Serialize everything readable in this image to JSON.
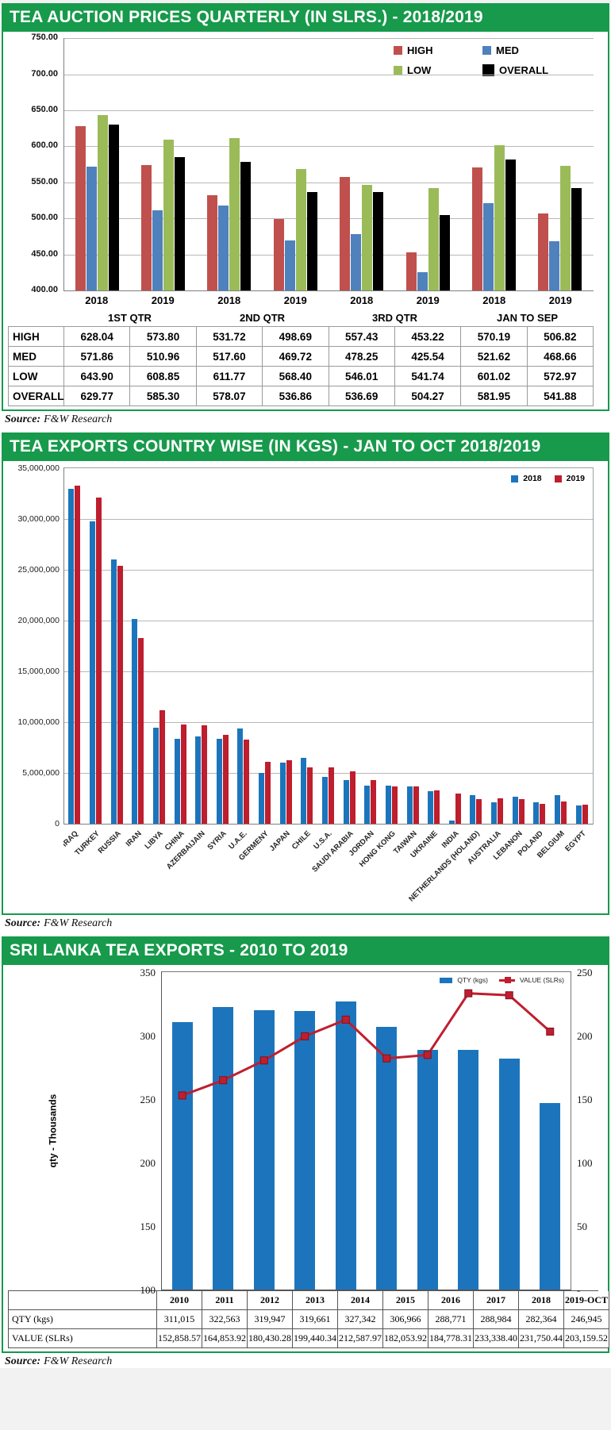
{
  "source_note": {
    "label": "Source:",
    "value": "F&W Research"
  },
  "panels": {
    "p1": {
      "title": "TEA AUCTION PRICES QUARTERLY (IN SLRS.) - 2018/2019"
    },
    "p2": {
      "title": "TEA EXPORTS COUNTRY WISE (IN KGS) - JAN TO OCT 2018/2019"
    },
    "p3": {
      "title": "SRI LANKA TEA EXPORTS - 2010 TO 2019"
    }
  },
  "chart_data": [
    {
      "type": "bar",
      "title": "TEA AUCTION PRICES QUARTERLY (IN SLRS.) - 2018/2019",
      "categories": [
        "2018",
        "2019",
        "2018",
        "2019",
        "2018",
        "2019",
        "2018",
        "2019"
      ],
      "category_groups": [
        "1ST QTR",
        "2ND QTR",
        "3RD QTR",
        "JAN TO SEP"
      ],
      "series": [
        {
          "name": "HIGH",
          "color": "#C0504D",
          "values": [
            "628.04",
            "573.80",
            "531.72",
            "498.69",
            "557.43",
            "453.22",
            "570.19",
            "506.82"
          ]
        },
        {
          "name": "MED",
          "color": "#4F81BD",
          "values": [
            "571.86",
            "510.96",
            "517.60",
            "469.72",
            "478.25",
            "425.54",
            "521.62",
            "468.66"
          ]
        },
        {
          "name": "LOW",
          "color": "#9BBB59",
          "values": [
            "643.90",
            "608.85",
            "611.77",
            "568.40",
            "546.01",
            "541.74",
            "601.02",
            "572.97"
          ]
        },
        {
          "name": "OVERALL",
          "color": "#000000",
          "values": [
            "629.77",
            "585.30",
            "578.07",
            "536.86",
            "536.69",
            "504.27",
            "581.95",
            "541.88"
          ]
        }
      ],
      "ylim": [
        400,
        750
      ],
      "yticks": [
        "750.00",
        "700.00",
        "650.00",
        "600.00",
        "550.00",
        "500.00",
        "450.00",
        "400.00"
      ],
      "grid": true,
      "legend_position": "top-right"
    },
    {
      "type": "bar",
      "title": "TEA EXPORTS COUNTRY WISE (IN KGS) - JAN TO OCT 2018/2019",
      "categories": [
        "IRAQ",
        "TURKEY",
        "RUSSIA",
        "IRAN",
        "LIBYA",
        "CHINA",
        "AZERBAIJAIN",
        "SYRIA",
        "U.A.E.",
        "GERMENY",
        "JAPAN",
        "CHILE",
        "U.S.A.",
        "SAUDI ARABIA",
        "JORDAN",
        "HONG KONG",
        "TAIWAN",
        "UKRAINE",
        "INDIA",
        "NETHERLANDS (HOLAND)",
        "AUSTRALIA",
        "LEBANON",
        "POLAND",
        "BELGIUM",
        "EGYPT"
      ],
      "series": [
        {
          "name": "2018",
          "color": "#1C75BC",
          "values": [
            33000000,
            29800000,
            26000000,
            20200000,
            9500000,
            8400000,
            8600000,
            8400000,
            9400000,
            5000000,
            6000000,
            6500000,
            4600000,
            4300000,
            3800000,
            3800000,
            3700000,
            3200000,
            300000,
            2800000,
            2100000,
            2700000,
            2100000,
            2800000,
            1800000
          ]
        },
        {
          "name": "2019",
          "color": "#BE1E2D",
          "values": [
            33300000,
            32100000,
            25400000,
            18300000,
            11200000,
            9800000,
            9700000,
            8800000,
            8300000,
            6100000,
            6300000,
            5600000,
            5600000,
            5200000,
            4300000,
            3700000,
            3700000,
            3300000,
            3000000,
            2400000,
            2500000,
            2400000,
            2000000,
            2200000,
            1900000
          ]
        }
      ],
      "ylim": [
        0,
        35000000
      ],
      "yticks": [
        "35,000,000",
        "30,000,000",
        "25,000,000",
        "20,000,000",
        "15,000,000",
        "10,000,000",
        "5,000,000",
        "0"
      ],
      "grid": true,
      "legend_position": "top-right"
    },
    {
      "type": "combo",
      "title": "SRI LANKA TEA EXPORTS - 2010 TO 2019",
      "categories": [
        "2010",
        "2011",
        "2012",
        "2013",
        "2014",
        "2015",
        "2016",
        "2017",
        "2018",
        "2019-OCT"
      ],
      "bar_series": {
        "name": "QTY (kgs)",
        "color": "#1C75BC",
        "row_label": "QTY (kgs)",
        "display": [
          "311,015",
          "322,563",
          "319,947",
          "319,661",
          "327,342",
          "306,966",
          "288,771",
          "288,984",
          "282,364",
          "246,945"
        ]
      },
      "line_series": {
        "name": "VALUE (SLRs)",
        "color": "#C01E2F",
        "row_label": "VALUE (SLRs)",
        "display": [
          "152,858.57",
          "164,853.92",
          "180,430.28",
          "199,440.34",
          "212,587.97",
          "182,053.92",
          "184,778.31",
          "233,338.40",
          "231,750.44",
          "203,159.52"
        ]
      },
      "left_axis": {
        "title": "qty - Thousands",
        "lim": [
          100,
          350
        ],
        "ticks": [
          "350",
          "300",
          "250",
          "200",
          "150",
          "100"
        ]
      },
      "right_axis": {
        "lim": [
          0,
          250
        ],
        "ticks": [
          "250",
          "200",
          "150",
          "100",
          "50",
          "-"
        ]
      },
      "grid": false,
      "legend_position": "top-right"
    }
  ]
}
